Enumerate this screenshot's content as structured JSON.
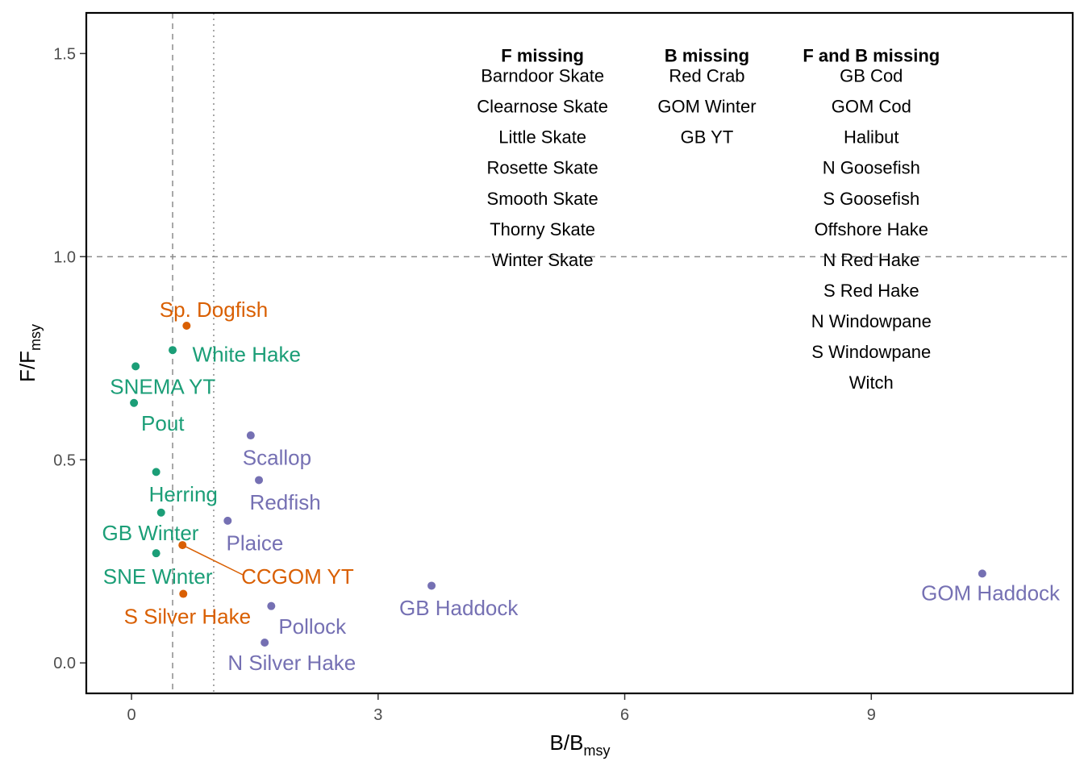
{
  "chart_data": {
    "type": "scatter",
    "title": "",
    "xlabel": {
      "main": "B",
      "sub": "msy",
      "slash_main": "B"
    },
    "ylabel": {
      "main": "F",
      "sub": "msy",
      "slash_main": "F"
    },
    "xlim": [
      -0.55,
      11.45
    ],
    "ylim": [
      -0.075,
      1.6
    ],
    "x_ticks": [
      0,
      3,
      6,
      9
    ],
    "x_tick_labels": [
      "0",
      "3",
      "6",
      "9"
    ],
    "y_ticks": [
      0.0,
      0.5,
      1.0,
      1.5
    ],
    "y_tick_labels": [
      "0.0",
      "0.5",
      "1.0",
      "1.5"
    ],
    "grid": false,
    "reference_lines": [
      {
        "axis": "x",
        "value": 0.5,
        "style": "dashed"
      },
      {
        "axis": "x",
        "value": 1.0,
        "style": "dotted"
      },
      {
        "axis": "y",
        "value": 1.0,
        "style": "dashed"
      }
    ],
    "colors": {
      "green": "#1b9e77",
      "orange": "#d95f02",
      "purple": "#7570b3"
    },
    "points": [
      {
        "label": "Sp. Dogfish",
        "x": 0.67,
        "y": 0.83,
        "color": "orange",
        "lx": 1.0,
        "ly": 0.87
      },
      {
        "label": "White Hake",
        "x": 0.5,
        "y": 0.77,
        "color": "green",
        "lx": 1.4,
        "ly": 0.76
      },
      {
        "label": "SNEMA YT",
        "x": 0.05,
        "y": 0.73,
        "color": "green",
        "lx": 0.38,
        "ly": 0.68
      },
      {
        "label": "Pout",
        "x": 0.03,
        "y": 0.64,
        "color": "green",
        "lx": 0.38,
        "ly": 0.59
      },
      {
        "label": "Scallop",
        "x": 1.45,
        "y": 0.56,
        "color": "purple",
        "lx": 1.77,
        "ly": 0.505
      },
      {
        "label": "Herring",
        "x": 0.3,
        "y": 0.47,
        "color": "green",
        "lx": 0.63,
        "ly": 0.415
      },
      {
        "label": "Redfish",
        "x": 1.55,
        "y": 0.45,
        "color": "purple",
        "lx": 1.87,
        "ly": 0.395
      },
      {
        "label": "GB Winter",
        "x": 0.36,
        "y": 0.37,
        "color": "green",
        "lx": 0.23,
        "ly": 0.32
      },
      {
        "label": "Plaice",
        "x": 1.17,
        "y": 0.35,
        "color": "purple",
        "lx": 1.5,
        "ly": 0.295
      },
      {
        "label": "CCGOM YT",
        "x": 0.62,
        "y": 0.29,
        "color": "orange",
        "lx": 2.02,
        "ly": 0.213,
        "leader": true
      },
      {
        "label": "SNE Winter",
        "x": 0.3,
        "y": 0.27,
        "color": "green",
        "lx": 0.32,
        "ly": 0.213
      },
      {
        "label": "GB Haddock",
        "x": 3.65,
        "y": 0.19,
        "color": "purple",
        "lx": 3.98,
        "ly": 0.135
      },
      {
        "label": "GOM Haddock",
        "x": 10.35,
        "y": 0.22,
        "color": "purple",
        "lx": 10.45,
        "ly": 0.172
      },
      {
        "label": "S Silver Hake",
        "x": 0.63,
        "y": 0.17,
        "color": "orange",
        "lx": 0.68,
        "ly": 0.115
      },
      {
        "label": "Pollock",
        "x": 1.7,
        "y": 0.14,
        "color": "purple",
        "lx": 2.2,
        "ly": 0.09
      },
      {
        "label": "N Silver Hake",
        "x": 1.62,
        "y": 0.05,
        "color": "purple",
        "lx": 1.95,
        "ly": 0.0
      }
    ],
    "missing_lists": [
      {
        "heading": "F missing",
        "x": 5.0,
        "items": [
          "Barndoor Skate",
          "Clearnose Skate",
          "Little Skate",
          "Rosette Skate",
          "Smooth Skate",
          "Thorny Skate",
          "Winter Skate"
        ]
      },
      {
        "heading": "B missing",
        "x": 7.0,
        "items": [
          "Red Crab",
          "GOM Winter",
          "GB YT"
        ]
      },
      {
        "heading": "F and B missing",
        "x": 9.0,
        "items": [
          "GB Cod",
          "GOM Cod",
          "Halibut",
          "N Goosefish",
          "S Goosefish",
          "Offshore Hake",
          "N Red Hake",
          "S Red Hake",
          "N Windowpane",
          "S Windowpane",
          "Witch"
        ]
      }
    ]
  }
}
